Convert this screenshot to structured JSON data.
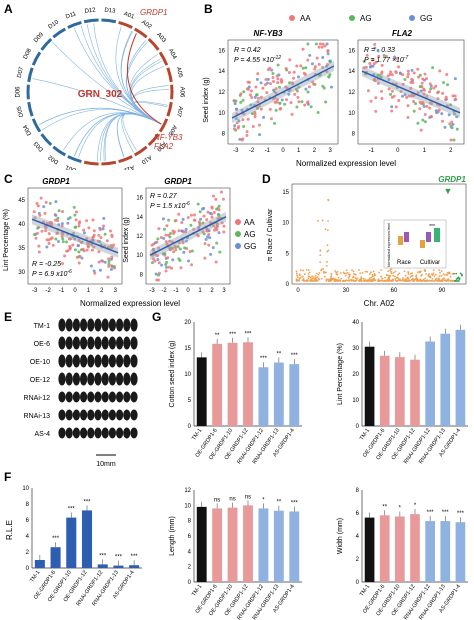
{
  "labels": {
    "A": "A",
    "B": "B",
    "C": "C",
    "D": "D",
    "E": "E",
    "F": "F",
    "G": "G"
  },
  "panelA": {
    "center": "GRN_302",
    "gene": "GRDP1",
    "genes_right": [
      "NF-YB3",
      "FLA2"
    ],
    "chromosomes": [
      "D13",
      "A01",
      "A02",
      "A03",
      "A04",
      "A05",
      "A06",
      "A07",
      "A08",
      "A09",
      "A10",
      "A11",
      "A12",
      "A13",
      "D01",
      "D02",
      "D03",
      "D04",
      "D05",
      "D06",
      "D07",
      "D08",
      "D09",
      "D10",
      "D11",
      "D12"
    ]
  },
  "panelB": {
    "legend": [
      "AA",
      "AG",
      "GG"
    ],
    "colors": {
      "AA": "#f07777",
      "AG": "#5cb85c",
      "GG": "#6a8fd8"
    },
    "ylabel": "Seed index (g)",
    "xlabel": "Normalized expression level",
    "left": {
      "title": "NF-YB3",
      "R": "R = 0.42",
      "P": "P = 4.55 ×10",
      "Pexp": "-12"
    },
    "right": {
      "title": "FLA2",
      "R": "R = - 0.33",
      "P": "P = 1.77 ×10",
      "Pexp": "-7"
    },
    "yticks": [
      "8",
      "10",
      "12",
      "14",
      "16"
    ],
    "xticks_left": [
      "-3",
      "-2",
      "-1",
      "0",
      "1",
      "2",
      "3"
    ],
    "xticks_right": [
      "-1",
      "0",
      "1",
      "2"
    ]
  },
  "panelC": {
    "legend": [
      "AA",
      "AG",
      "GG"
    ],
    "left": {
      "title": "GRDP1",
      "ylabel": "Lint Percentage (%)",
      "R": "R = -0.25",
      "P": "P = 6.9 x10",
      "Pexp": "-6",
      "yticks": [
        "30",
        "35",
        "40",
        "45"
      ]
    },
    "right": {
      "title": "GRDP1",
      "ylabel": "Seed index (g)",
      "R": "R = 0.27",
      "P": "P = 1.5 x10",
      "Pexp": "-6",
      "yticks": [
        "8",
        "10",
        "12",
        "14",
        "16"
      ]
    },
    "xlabel": "Normalized expression level",
    "xticks": [
      "-3",
      "-2",
      "-1",
      "0",
      "1",
      "2",
      "3"
    ]
  },
  "panelD": {
    "gene": "GRDP1",
    "ylabel": "π Race / Cultivar",
    "xlabel": "Chr. A02",
    "yticks": [
      "0",
      "5",
      "10",
      "15"
    ],
    "xticks": [
      "0",
      "30",
      "60",
      "90"
    ],
    "inset": {
      "groups": [
        "Race",
        "Cultivar"
      ],
      "sig": "***",
      "ylabel": "Normalized expression level"
    }
  },
  "panelE": {
    "rows": [
      "TM-1",
      "OE-6",
      "OE-10",
      "OE-12",
      "RNAi-12",
      "RNAi-13",
      "AS-4"
    ],
    "scale": "10mm"
  },
  "panelF": {
    "ylabel": "R.L.E",
    "yticks": [
      "0",
      "2",
      "4",
      "6",
      "8",
      "10"
    ],
    "categories": [
      "TM-1",
      "OE-GRDP1-6",
      "OE-GRDP1-10",
      "OE-GRDP1-12",
      "RNAi-GRDP1-12",
      "RNAi-GRDP1-13",
      "AS-GRDP1-4"
    ],
    "values": [
      1,
      2.6,
      6.3,
      7.2,
      0.45,
      0.3,
      0.35
    ],
    "sig": [
      "",
      "***",
      "***",
      "***",
      "***",
      "***",
      "***"
    ]
  },
  "panelG": {
    "categories": [
      "TM-1",
      "OE-GRDP1-6",
      "OE-GRDP1-10",
      "OE-GRDP1-12",
      "RNAi-GRDP1-12",
      "RNAi-GRDP1-13",
      "AS-GRDP1-4"
    ],
    "colors": [
      "#111111",
      "#e89a9a",
      "#e89a9a",
      "#e89a9a",
      "#8fb2e0",
      "#8fb2e0",
      "#8fb2e0"
    ],
    "seed": {
      "ylabel": "Cotton seed index (g)",
      "yticks": [
        "0",
        "5",
        "10",
        "15",
        "20"
      ],
      "ylim": [
        0,
        20
      ],
      "values": [
        13.2,
        15.8,
        16.0,
        16.1,
        11.3,
        12.2,
        11.9
      ],
      "sig": [
        "",
        "**",
        "***",
        "***",
        "***",
        "**",
        "***"
      ]
    },
    "lint": {
      "ylabel": "Lint Percentage (%)",
      "yticks": [
        "0",
        "10",
        "20",
        "30",
        "40"
      ],
      "ylim": [
        0,
        40
      ],
      "values": [
        30.5,
        27.0,
        26.5,
        25.5,
        32.5,
        35.5,
        37.0
      ],
      "sig": [
        "",
        "",
        "",
        "",
        "",
        "",
        ""
      ]
    },
    "length": {
      "ylabel": "Length (mm)",
      "yticks": [
        "0",
        "2",
        "4",
        "6",
        "8",
        "10",
        "12"
      ],
      "ylim": [
        0,
        12
      ],
      "values": [
        9.8,
        9.6,
        9.7,
        10.0,
        9.6,
        9.3,
        9.2
      ],
      "sig": [
        "",
        "ns",
        "ns",
        "ns",
        "*",
        "**",
        "***"
      ]
    },
    "width": {
      "ylabel": "Width (mm)",
      "yticks": [
        "0",
        "2",
        "4",
        "6",
        "8"
      ],
      "ylim": [
        0,
        8
      ],
      "values": [
        5.6,
        5.8,
        5.7,
        5.9,
        5.3,
        5.3,
        5.2
      ],
      "sig": [
        "",
        "**",
        "*",
        "*",
        "***",
        "***",
        "***"
      ]
    }
  }
}
